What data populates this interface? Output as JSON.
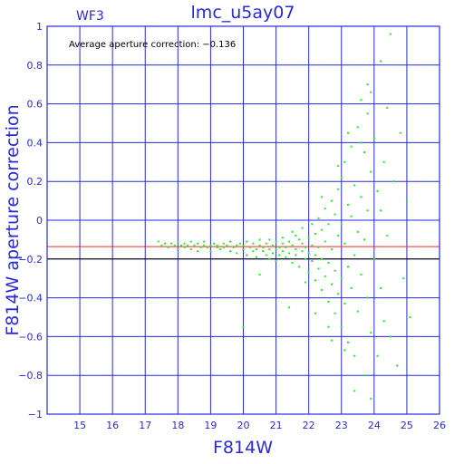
{
  "chart_data": {
    "type": "scatter",
    "title": "lmc_u5ay07",
    "corner_label": "WF3",
    "annotation": "Average aperture correction:  −0.136",
    "xlabel": "F814W",
    "ylabel": "F814W aperture correction",
    "xlim": [
      14,
      26
    ],
    "ylim": [
      -1,
      1
    ],
    "xticks": [
      15,
      16,
      17,
      18,
      19,
      20,
      21,
      22,
      23,
      24,
      25,
      26
    ],
    "yticks": [
      -1,
      -0.8,
      -0.6,
      -0.4,
      -0.2,
      0,
      0.2,
      0.4,
      0.6,
      0.8,
      1
    ],
    "ytick_labels": [
      "−1",
      "−0.8",
      "−0.6",
      "−0.4",
      "−0.2",
      "0",
      "0.2",
      "0.4",
      "0.6",
      "0.8",
      "1"
    ],
    "grid": true,
    "reference_lines": [
      {
        "y": -0.136,
        "color": "#ff2020",
        "label": "average"
      },
      {
        "y": -0.2,
        "color": "#000000"
      }
    ],
    "series": [
      {
        "color": "#22ee22",
        "points": [
          [
            17.4,
            -0.11
          ],
          [
            17.5,
            -0.13
          ],
          [
            17.6,
            -0.12
          ],
          [
            17.7,
            -0.14
          ],
          [
            17.8,
            -0.12
          ],
          [
            17.9,
            -0.13
          ],
          [
            18.0,
            -0.11
          ],
          [
            18.0,
            -0.15
          ],
          [
            18.1,
            -0.13
          ],
          [
            18.2,
            -0.12
          ],
          [
            18.2,
            -0.14
          ],
          [
            18.3,
            -0.13
          ],
          [
            18.4,
            -0.15
          ],
          [
            18.4,
            -0.11
          ],
          [
            18.5,
            -0.13
          ],
          [
            18.6,
            -0.12
          ],
          [
            18.6,
            -0.16
          ],
          [
            18.7,
            -0.14
          ],
          [
            18.8,
            -0.13
          ],
          [
            18.8,
            -0.11
          ],
          [
            18.9,
            -0.14
          ],
          [
            19.0,
            -0.13
          ],
          [
            19.0,
            -0.16
          ],
          [
            19.1,
            -0.12
          ],
          [
            19.2,
            -0.14
          ],
          [
            19.2,
            -0.13
          ],
          [
            19.3,
            -0.15
          ],
          [
            19.4,
            -0.12
          ],
          [
            19.4,
            -0.14
          ],
          [
            19.5,
            -0.13
          ],
          [
            19.6,
            -0.16
          ],
          [
            19.6,
            -0.11
          ],
          [
            19.7,
            -0.14
          ],
          [
            19.8,
            -0.13
          ],
          [
            19.8,
            -0.17
          ],
          [
            19.9,
            -0.12
          ],
          [
            20.0,
            -0.15
          ],
          [
            20.0,
            -0.13
          ],
          [
            20.1,
            -0.18
          ],
          [
            20.1,
            -0.11
          ],
          [
            20.2,
            -0.14
          ],
          [
            20.3,
            -0.16
          ],
          [
            20.3,
            -0.12
          ],
          [
            20.4,
            -0.15
          ],
          [
            20.4,
            -0.19
          ],
          [
            20.5,
            -0.13
          ],
          [
            20.5,
            -0.1
          ],
          [
            20.6,
            -0.16
          ],
          [
            20.6,
            -0.14
          ],
          [
            20.7,
            -0.18
          ],
          [
            20.7,
            -0.12
          ],
          [
            20.8,
            -0.15
          ],
          [
            20.8,
            -0.2
          ],
          [
            20.9,
            -0.13
          ],
          [
            20.9,
            -0.17
          ],
          [
            21.0,
            -0.11
          ],
          [
            21.0,
            -0.15
          ],
          [
            21.0,
            -0.21
          ],
          [
            21.1,
            -0.14
          ],
          [
            21.1,
            -0.18
          ],
          [
            21.2,
            -0.12
          ],
          [
            21.2,
            -0.16
          ],
          [
            21.2,
            -0.09
          ],
          [
            21.3,
            -0.19
          ],
          [
            21.3,
            -0.14
          ],
          [
            21.4,
            -0.11
          ],
          [
            21.4,
            -0.17
          ],
          [
            21.5,
            -0.22
          ],
          [
            21.5,
            -0.13
          ],
          [
            21.5,
            -0.06
          ],
          [
            21.6,
            -0.18
          ],
          [
            21.6,
            -0.15
          ],
          [
            21.7,
            -0.1
          ],
          [
            21.7,
            -0.24
          ],
          [
            21.8,
            -0.16
          ],
          [
            21.8,
            -0.12
          ],
          [
            21.8,
            -0.04
          ],
          [
            21.9,
            -0.2
          ],
          [
            21.9,
            -0.14
          ],
          [
            22.0,
            -0.27
          ],
          [
            22.0,
            -0.09
          ],
          [
            22.0,
            -0.17
          ],
          [
            22.1,
            -0.02
          ],
          [
            22.1,
            -0.21
          ],
          [
            22.1,
            -0.13
          ],
          [
            22.2,
            -0.31
          ],
          [
            22.2,
            -0.07
          ],
          [
            22.2,
            -0.18
          ],
          [
            22.3,
            0.01
          ],
          [
            22.3,
            -0.25
          ],
          [
            22.3,
            -0.14
          ],
          [
            22.4,
            -0.36
          ],
          [
            22.4,
            -0.05
          ],
          [
            22.4,
            -0.2
          ],
          [
            22.5,
            0.06
          ],
          [
            22.5,
            -0.29
          ],
          [
            22.5,
            -0.11
          ],
          [
            22.6,
            -0.42
          ],
          [
            22.6,
            -0.02
          ],
          [
            22.6,
            -0.22
          ],
          [
            22.7,
            0.1
          ],
          [
            22.7,
            -0.33
          ],
          [
            22.7,
            -0.15
          ],
          [
            22.8,
            -0.48
          ],
          [
            22.8,
            0.03
          ],
          [
            22.8,
            -0.26
          ],
          [
            22.9,
            0.16
          ],
          [
            22.9,
            -0.38
          ],
          [
            22.9,
            -0.08
          ],
          [
            23.0,
            -0.55
          ],
          [
            23.0,
            0.22
          ],
          [
            23.0,
            -0.3
          ],
          [
            23.0,
            -0.02
          ],
          [
            23.1,
            0.3
          ],
          [
            23.1,
            -0.43
          ],
          [
            23.1,
            -0.12
          ],
          [
            23.2,
            0.08
          ],
          [
            23.2,
            -0.63
          ],
          [
            23.2,
            -0.24
          ],
          [
            23.3,
            0.38
          ],
          [
            23.3,
            -0.35
          ],
          [
            23.3,
            0.02
          ],
          [
            23.4,
            -0.7
          ],
          [
            23.4,
            0.18
          ],
          [
            23.4,
            -0.18
          ],
          [
            23.5,
            0.48
          ],
          [
            23.5,
            -0.47
          ],
          [
            23.5,
            -0.06
          ],
          [
            23.6,
            0.62
          ],
          [
            23.6,
            -0.28
          ],
          [
            23.6,
            0.12
          ],
          [
            23.7,
            -0.8
          ],
          [
            23.7,
            0.35
          ],
          [
            23.7,
            -0.1
          ],
          [
            23.8,
            0.55
          ],
          [
            23.8,
            -0.4
          ],
          [
            23.8,
            0.05
          ],
          [
            23.9,
            0.66
          ],
          [
            23.9,
            -0.58
          ],
          [
            23.9,
            0.25
          ],
          [
            24.0,
            -0.2
          ],
          [
            24.0,
            0.42
          ],
          [
            24.1,
            -0.7
          ],
          [
            24.1,
            0.15
          ],
          [
            24.2,
            0.82
          ],
          [
            24.2,
            -0.35
          ],
          [
            24.3,
            0.3
          ],
          [
            24.3,
            -0.52
          ],
          [
            24.4,
            0.58
          ],
          [
            24.4,
            -0.08
          ],
          [
            24.5,
            0.96
          ],
          [
            24.5,
            -0.6
          ],
          [
            24.6,
            0.2
          ],
          [
            24.7,
            -0.75
          ],
          [
            24.8,
            0.45
          ],
          [
            24.9,
            -0.3
          ],
          [
            25.0,
            0.1
          ],
          [
            25.1,
            -0.5
          ],
          [
            20.8,
            -0.1
          ],
          [
            21.6,
            -0.08
          ],
          [
            20.5,
            -0.28
          ],
          [
            21.9,
            -0.32
          ],
          [
            22.6,
            -0.55
          ],
          [
            23.1,
            -0.67
          ],
          [
            22.2,
            -0.48
          ],
          [
            23.4,
            -0.88
          ],
          [
            22.7,
            -0.62
          ],
          [
            23.9,
            -0.92
          ],
          [
            20.0,
            -0.55
          ],
          [
            21.4,
            -0.45
          ],
          [
            22.9,
            0.28
          ],
          [
            23.6,
            0.4
          ],
          [
            24.2,
            0.05
          ],
          [
            22.4,
            0.12
          ],
          [
            23.2,
            0.45
          ],
          [
            23.8,
            0.7
          ]
        ]
      }
    ]
  }
}
